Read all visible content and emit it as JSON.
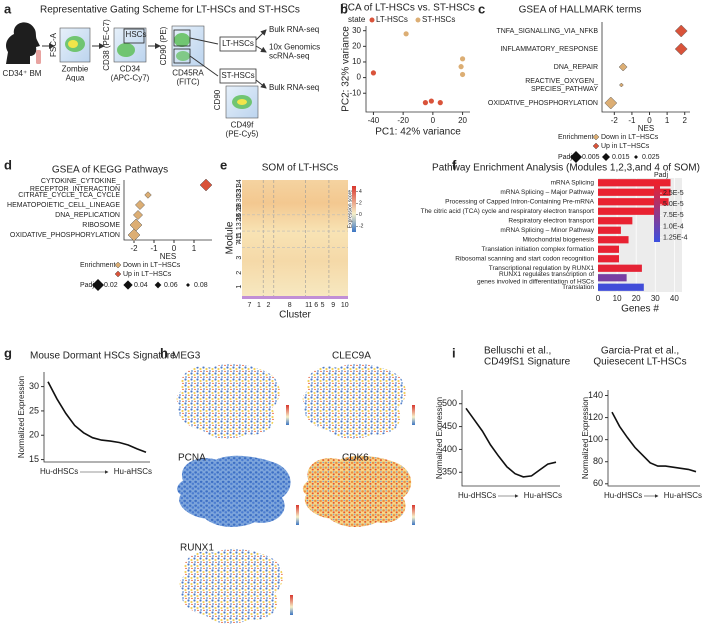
{
  "panel_labels": [
    "a",
    "b",
    "c",
    "d",
    "e",
    "f",
    "g",
    "h",
    "i"
  ],
  "gating": {
    "title": "Representative Gating Scheme for LT-HSCs and ST-HSCs",
    "source": "CD34⁺ BM",
    "plots": [
      {
        "y": "FSC-A",
        "x": "Zombie\nAqua"
      },
      {
        "y": "CD38 (PE-C7)",
        "x": "CD34\n(APC-Cy7)",
        "gate": "HSCs"
      },
      {
        "y": "CD90 (PE)",
        "x": "CD45RA\n(FITC)",
        "gates": [
          "LT-HSCs",
          "ST-HSCs"
        ]
      },
      {
        "y": "CD90",
        "x": "CD49f\n(PE-Cy5)"
      }
    ],
    "outputs": [
      "Bulk RNA-seq",
      "10x Genomics\nscRNA-seq",
      "Bulk RNA-seq"
    ]
  },
  "umap": {
    "genes": [
      "MEG3",
      "CLEC9A",
      "PCNA",
      "CDK6",
      "RUNX1"
    ]
  },
  "chart_data": [
    {
      "type": "scatter",
      "title": "PCA of LT-HSCs vs. ST-HSCs",
      "xlabel": "PC1: 42% variance",
      "ylabel": "PC2: 32% variance",
      "legend_title": "state",
      "series": [
        {
          "name": "LT-HSCs",
          "color": "#d9533a",
          "x": [
            -40,
            -5,
            -1,
            5
          ],
          "values": [
            3,
            -16,
            -15,
            -16
          ]
        },
        {
          "name": "ST-HSCs",
          "color": "#dcae74",
          "x": [
            -18,
            20,
            19,
            20
          ],
          "values": [
            28,
            12,
            7,
            2
          ]
        }
      ],
      "xlim": [
        -45,
        25
      ],
      "xticks": [
        -40,
        -20,
        0,
        20
      ],
      "ylim": [
        -22,
        33
      ],
      "yticks": [
        -10,
        0,
        10,
        20,
        30
      ]
    },
    {
      "type": "dot",
      "title": "GSEA of HALLMARK terms",
      "xlabel": "NES",
      "categories": [
        "TNFA_SIGNALLING_VIA_NFKB",
        "INFLAMMATORY_RESPONSE",
        "DNA_REPAIR",
        "REACTIVE_OXYGEN_\nSPECIES_PATHWAY",
        "OXIDATIVE_PHOSPHORYLATION"
      ],
      "legend_title": "Enrichment",
      "series": [
        {
          "name": "Down in LT−HSCs",
          "color": "#dcae74",
          "values": [
            null,
            null,
            -1.5,
            -1.6,
            -2.2
          ]
        },
        {
          "name": "Up in LT−HSCs",
          "color": "#d9533a",
          "values": [
            1.8,
            1.8,
            null,
            null,
            null
          ]
        }
      ],
      "padj": [
        0.005,
        0.005,
        0.015,
        0.025,
        0.005
      ],
      "size_title": "Padj",
      "size_legend": [
        0.005,
        0.015,
        0.025
      ],
      "xlim": [
        -2.7,
        2.3
      ],
      "xticks": [
        -2,
        -1,
        0,
        1,
        2
      ]
    },
    {
      "type": "dot",
      "title": "GSEA of KEGG Pathways",
      "xlabel": "NES",
      "categories": [
        "CYTOKINE_CYTOKINE_\nRECEPTOR_INTERACTION",
        "CITRATE_CYCLE_TCA_CYCLE",
        "HEMATOPOIETIC_CELL_LINEAGE",
        "DNA_REPLICATION",
        "RIBOSOME",
        "OXIDATIVE_PHOSPHORYLATION"
      ],
      "legend_title": "Enrichment",
      "series": [
        {
          "name": "Down in LT−HSCs",
          "color": "#dcae74",
          "values": [
            null,
            -1.3,
            -1.7,
            -1.8,
            -1.9,
            -2.0
          ]
        },
        {
          "name": "Up in LT−HSCs",
          "color": "#d9533a",
          "values": [
            1.6,
            null,
            null,
            null,
            null,
            null
          ]
        }
      ],
      "padj": [
        0.02,
        0.06,
        0.04,
        0.04,
        0.02,
        0.02
      ],
      "size_title": "Padj",
      "size_legend": [
        0.02,
        0.04,
        0.06,
        0.08
      ],
      "xlim": [
        -2.5,
        1.9
      ],
      "xticks": [
        -2,
        -1,
        0,
        1
      ]
    },
    {
      "type": "heatmap",
      "title": "SOM of LT-HSCs",
      "xlabel": "Cluster",
      "ylabel": "Module",
      "categories": [
        "7",
        "1",
        "2",
        "8",
        "11",
        "6",
        "5",
        "9",
        "10"
      ],
      "rows": [
        "1",
        "2",
        "3",
        "4 5",
        "7 11 13 16 18",
        "28 29 30 31",
        "33 34"
      ],
      "colorbar_title": "Expression score",
      "clim": [
        -3,
        5
      ],
      "cticks": [
        4,
        2,
        0,
        -2
      ]
    },
    {
      "type": "barh",
      "title": "Pathway Enrichment Analysis (Modules 1,2,3,and 4 of SOM)",
      "xlabel": "Genes #",
      "categories": [
        "mRNA Splicing",
        "mRNA Splicing – Major Pathway",
        "Processing of Capped Intron-Containing Pre-mRNA",
        "The citric acid (TCA) cycle and respiratory electron transport",
        "Respiratory electron transport",
        "mRNA Splicing – Minor Pathway",
        "Mitochondrial biogenesis",
        "Translation initiation complex formation",
        "Ribosomal scanning and start codon recognition",
        "Transcriptional regulation by RUNX1",
        "RUNX1 regulates transcription of\ngenes involved in differentiation of HSCs",
        "Translation"
      ],
      "values": [
        38,
        38,
        37,
        32,
        18,
        12,
        16,
        11,
        11,
        23,
        15,
        24
      ],
      "padj": [
        5e-06,
        5e-06,
        5e-06,
        5e-06,
        5e-06,
        6e-06,
        6e-06,
        6e-06,
        6e-06,
        8e-06,
        9e-05,
        0.00013
      ],
      "xlim": [
        0,
        44
      ],
      "xticks": [
        0,
        10,
        20,
        30,
        40
      ],
      "colorbar_title": "Padj",
      "clim": [
        0,
        0.000135
      ],
      "colors": [
        "#f0202a",
        "#3a4fe0"
      ],
      "cticks": [
        {
          "value": 2.5e-05,
          "label": "2.5E-5"
        },
        {
          "value": 5e-05,
          "label": "5.0E-5"
        },
        {
          "value": 7.5e-05,
          "label": "7.5E-5"
        },
        {
          "value": 0.0001,
          "label": "1.0E-4"
        },
        {
          "value": 0.000125,
          "label": "1.25E-4"
        }
      ]
    },
    {
      "type": "line",
      "title": "Mouse Dormant HSCs Signature",
      "ylabel": "Normalized Expression",
      "xstart": "Hu-dHSCs",
      "xend": "Hu-aHSCs",
      "values": [
        31,
        27.5,
        24.5,
        22,
        20.5,
        19.5,
        19,
        18.8,
        18.5,
        18,
        17.2,
        16.5
      ],
      "ylim": [
        14.5,
        33
      ],
      "yticks": [
        15,
        20,
        25,
        30
      ]
    },
    {
      "type": "line",
      "title": "Belluschi et al.,\nCD49fS1 Signature",
      "ylabel": "Normalized Expression",
      "xstart": "Hu-dHSCs",
      "xend": "Hu-aHSCs",
      "values": [
        490,
        465,
        440,
        410,
        385,
        362,
        347,
        340,
        342,
        355,
        368,
        372
      ],
      "ylim": [
        320,
        530
      ],
      "yticks": [
        350,
        400,
        450,
        500
      ]
    },
    {
      "type": "line",
      "title": "Garcia-Prat et al.,\nQuiesecent LT-HSCs",
      "ylabel": "Normalized Expression",
      "xstart": "Hu-dHSCs",
      "xend": "Hu-aHSCs",
      "values": [
        125,
        112,
        102,
        93,
        86,
        79,
        76,
        76,
        75,
        74,
        73,
        71
      ],
      "ylim": [
        58,
        145
      ],
      "yticks": [
        60,
        80,
        100,
        120,
        140
      ]
    }
  ]
}
